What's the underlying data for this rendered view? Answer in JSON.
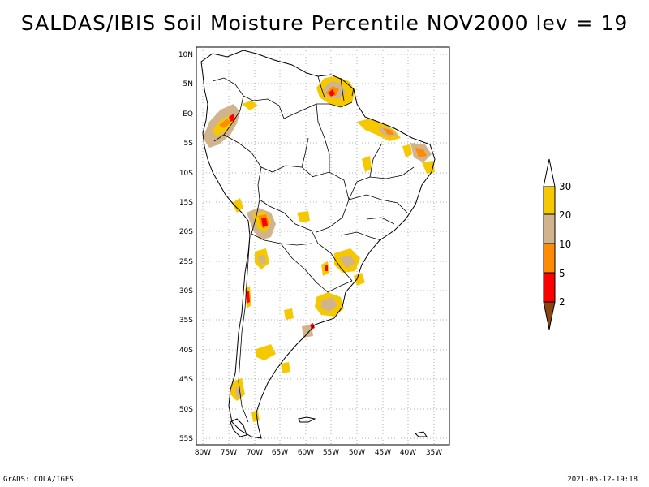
{
  "title": "SALDAS/IBIS Soil Moisture Percentile NOV2000 lev = 19",
  "footer": {
    "left": "GrADS: COLA/IGES",
    "right": "2021-05-12-19:18"
  },
  "map": {
    "region": "South America",
    "lat_ticks": [
      "10N",
      "5N",
      "EQ",
      "5S",
      "10S",
      "15S",
      "20S",
      "25S",
      "30S",
      "35S",
      "40S",
      "45S",
      "50S",
      "55S"
    ],
    "lon_ticks": [
      "80W",
      "75W",
      "70W",
      "65W",
      "60W",
      "55W",
      "50W",
      "45W",
      "40W",
      "35W"
    ],
    "lon_range": [
      -81,
      -33
    ],
    "lat_range": [
      -56,
      11
    ],
    "grid": "dotted"
  },
  "colorbar": {
    "labels": [
      "30",
      "20",
      "10",
      "5",
      "2"
    ],
    "colors": {
      "above_30": "#ffffff",
      "20_30": "#f5c800",
      "10_20": "#d2b48c",
      "5_10": "#ff8c00",
      "2_5": "#ff0000",
      "below_2": "#8b4513"
    }
  }
}
